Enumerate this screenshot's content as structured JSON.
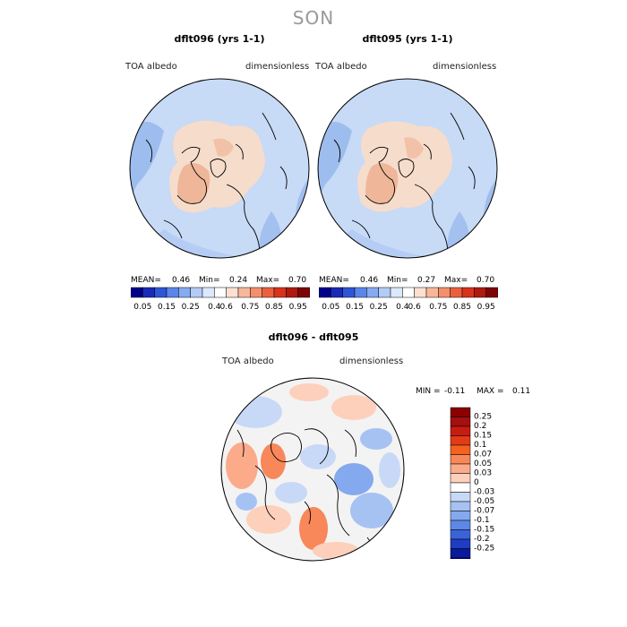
{
  "season": "SON",
  "panels": [
    {
      "title": "dflt096 (yrs 1-1)",
      "variable": "TOA albedo",
      "units": "dimensionless",
      "mean_label": "MEAN=",
      "mean": "0.46",
      "min_label": "Min=",
      "min": "0.24",
      "max_label": "Max=",
      "max": "0.70"
    },
    {
      "title": "dflt095 (yrs 1-1)",
      "variable": "TOA albedo",
      "units": "dimensionless",
      "mean_label": "MEAN=",
      "mean": "0.46",
      "min_label": "Min=",
      "min": "0.27",
      "max_label": "Max=",
      "max": "0.70"
    }
  ],
  "colorbar": {
    "labels": [
      "0.05",
      "0.15",
      "0.25",
      "0.4",
      "0.6",
      "0.75",
      "0.85",
      "0.95"
    ],
    "colors": [
      "#00008b",
      "#1a2ab8",
      "#2f56d6",
      "#5a86ea",
      "#86aaf2",
      "#b3cbf7",
      "#dce8fb",
      "#ffffff",
      "#fde0d0",
      "#f8b79a",
      "#f48f6c",
      "#ec5f3e",
      "#d8331c",
      "#b01a0e",
      "#7c0606"
    ]
  },
  "diff": {
    "title": "dflt096 - dflt095",
    "variable": "TOA albedo",
    "units": "dimensionless",
    "min_label": "MIN =",
    "min": "-0.11",
    "max_label": "MAX =",
    "max": "0.11",
    "legend": [
      {
        "label": "0.25",
        "color": "#a50f0f"
      },
      {
        "label": "0.2",
        "color": "#c81b12"
      },
      {
        "label": "0.15",
        "color": "#e33a18"
      },
      {
        "label": "0.1",
        "color": "#f5621f"
      },
      {
        "label": "0.07",
        "color": "#f8875a"
      },
      {
        "label": "0.05",
        "color": "#fbab8a"
      },
      {
        "label": "0.03",
        "color": "#fdd0bc"
      },
      {
        "label": "0",
        "color": "#ffffff"
      },
      {
        "label": "-0.03",
        "color": "#c8d9f7"
      },
      {
        "label": "-0.05",
        "color": "#a6c2f2"
      },
      {
        "label": "-0.07",
        "color": "#84a9ee"
      },
      {
        "label": "-0.1",
        "color": "#5e88e6"
      },
      {
        "label": "-0.15",
        "color": "#3a63d8"
      },
      {
        "label": "-0.2",
        "color": "#1f3cc2"
      },
      {
        "label": "-0.25",
        "color": "#0a1a9c"
      }
    ],
    "top_color": "#8b0000",
    "bottom_color": "#000080"
  }
}
